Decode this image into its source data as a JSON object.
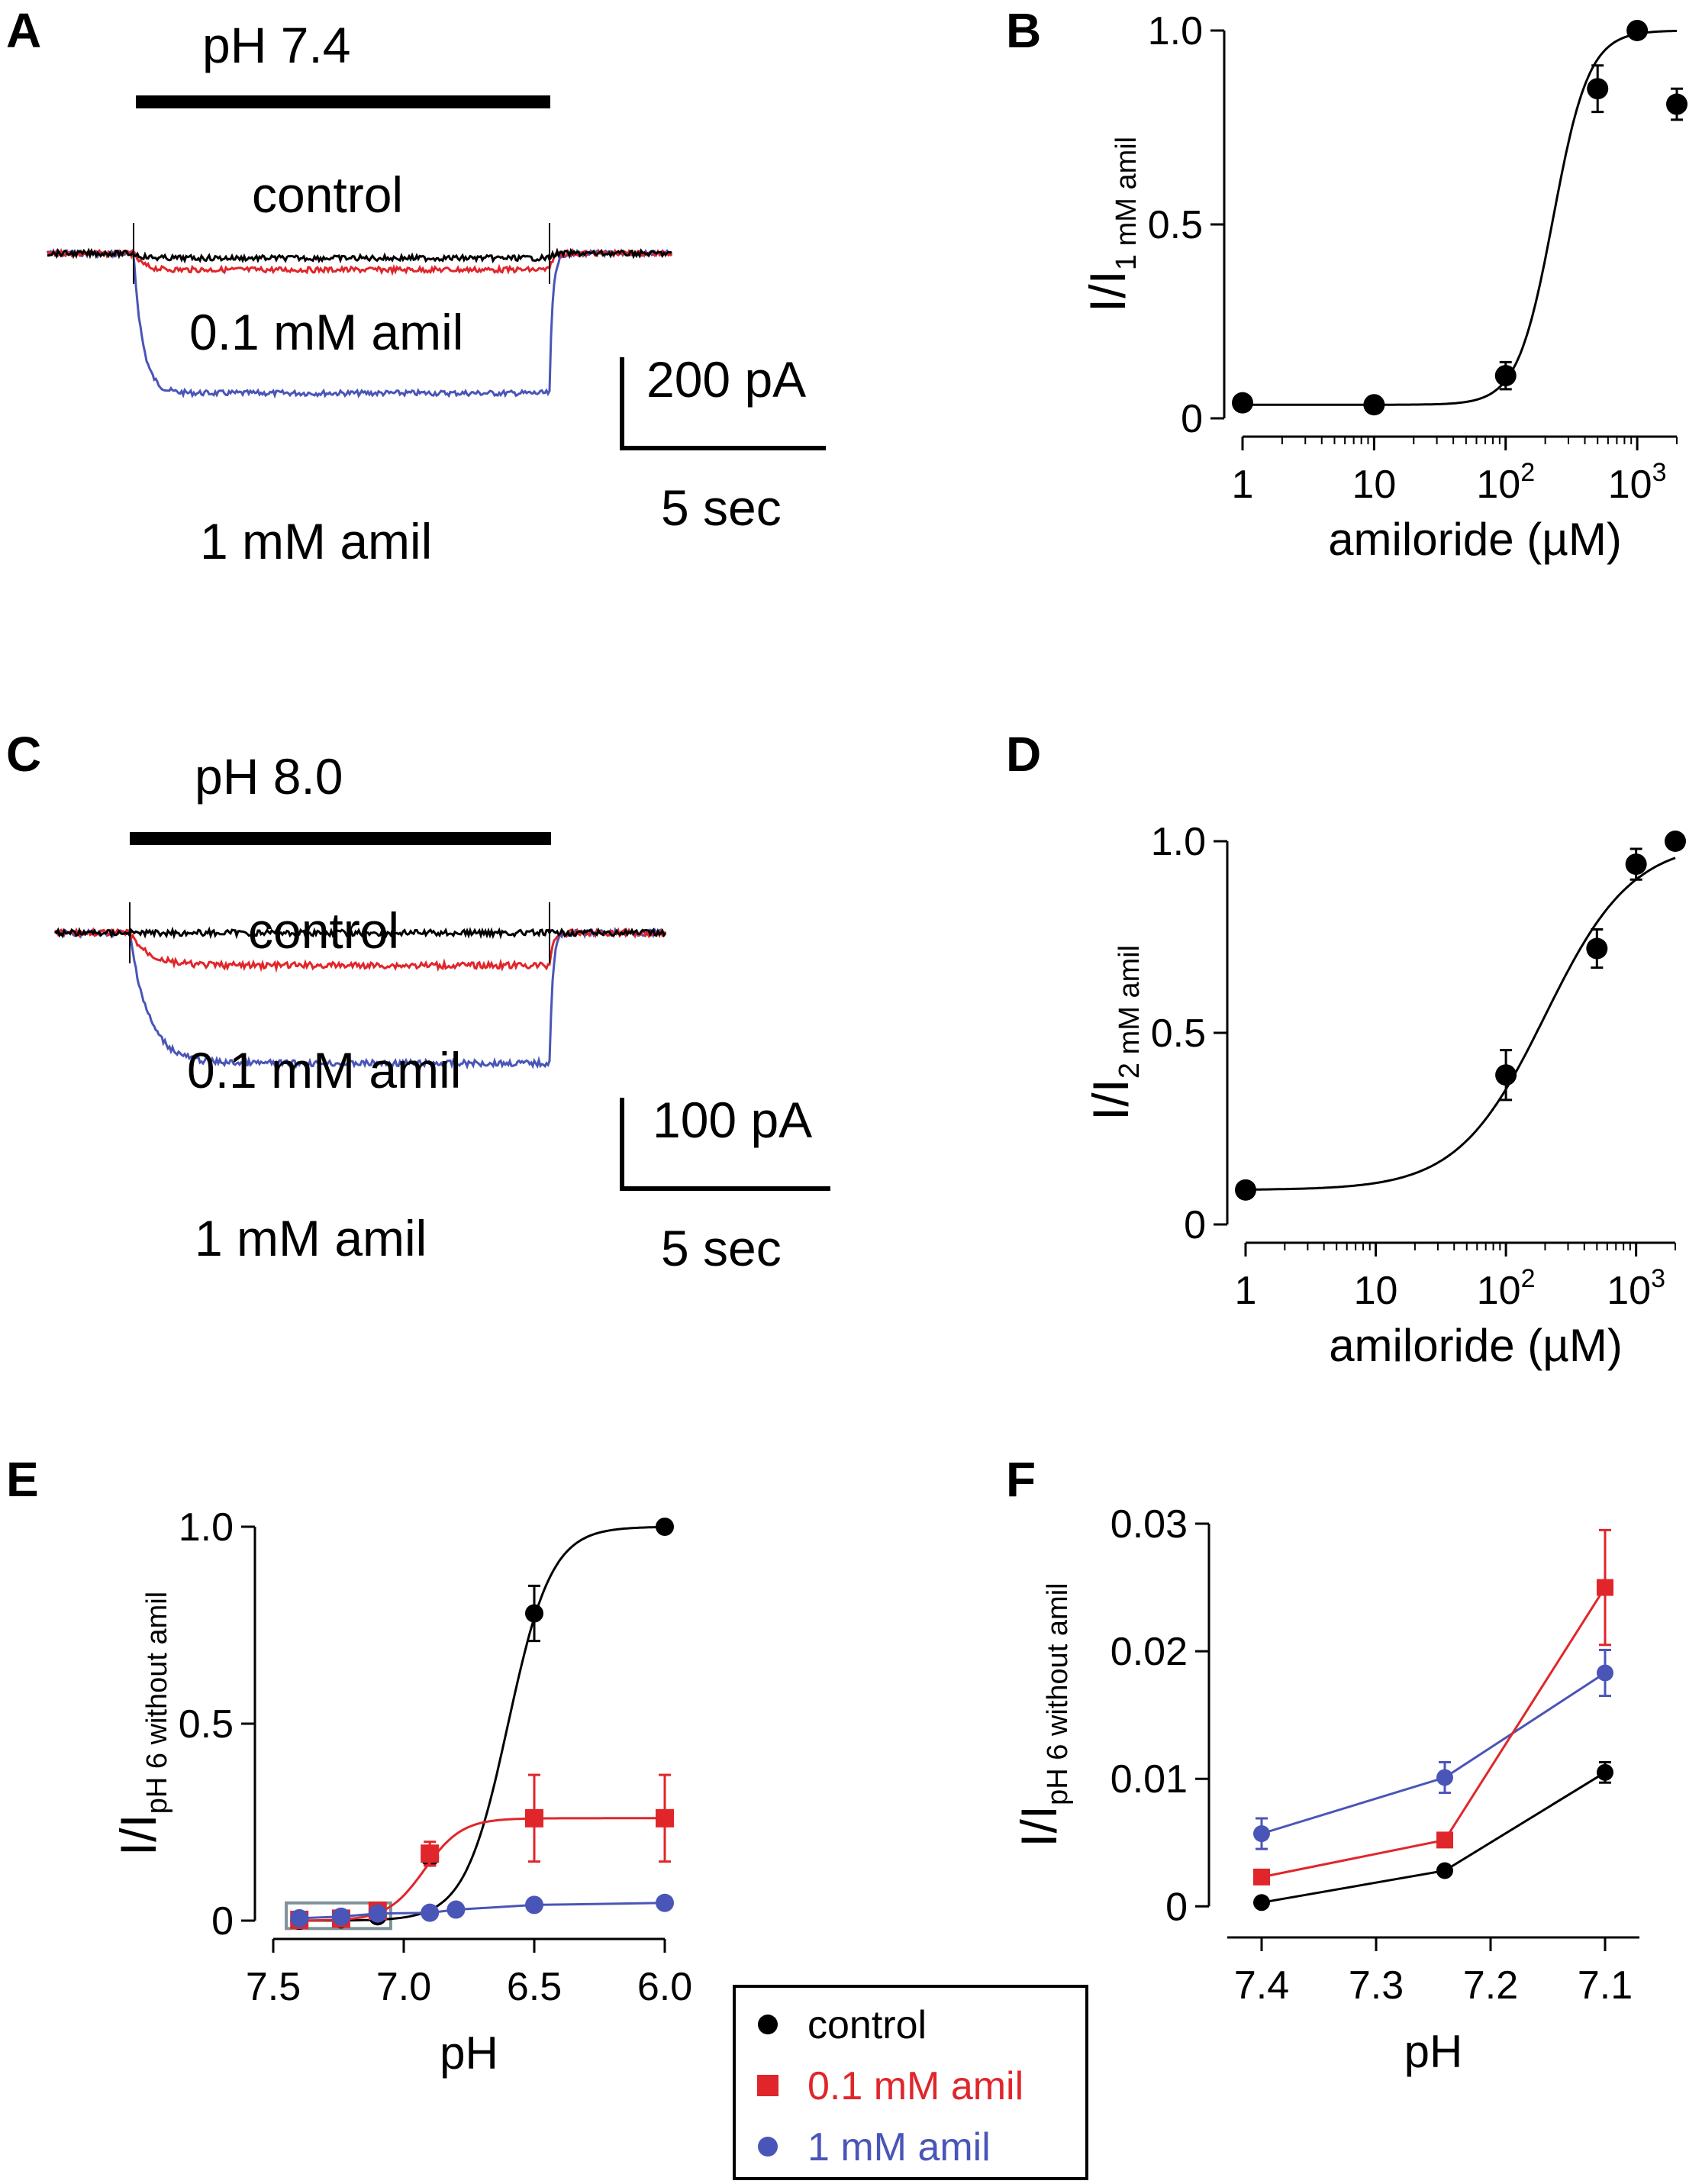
{
  "colors": {
    "control": "#000000",
    "amil_0_1": "#e0262b",
    "amil_1": "#4a55b8"
  },
  "panels": {
    "A": {
      "letter": "A",
      "stimulus_label": "pH 7.4",
      "trace_labels": {
        "control": "control",
        "amil_0_1": "0.1 mM amil",
        "amil_1": "1 mM amil"
      },
      "scale_bar": {
        "current": "200 pA",
        "time": "5 sec"
      },
      "trace_levels_pA": {
        "control": -10,
        "amil_0_1": -35,
        "amil_1": -300
      }
    },
    "C": {
      "letter": "C",
      "stimulus_label": "pH 8.0",
      "trace_labels": {
        "control": "control",
        "amil_0_1": "0.1 mM amil",
        "amil_1": "1 mM amil"
      },
      "scale_bar": {
        "current": "100 pA",
        "time": "5 sec"
      },
      "trace_levels_pA": {
        "control": 0,
        "amil_0_1": -35,
        "amil_1": -140
      }
    }
  },
  "chart_data": [
    {
      "id": "B",
      "letter": "B",
      "type": "scatter",
      "xscale": "log",
      "xlabel": "amiloride (µM)",
      "ylabel": {
        "main": "I/I",
        "sub": "1 mM amil"
      },
      "xlim": [
        1,
        2000
      ],
      "ylim": [
        0,
        1.0
      ],
      "xticks": [
        1,
        10,
        100,
        1000
      ],
      "xtick_labels": [
        {
          "base": "1",
          "sup": ""
        },
        {
          "base": "10",
          "sup": ""
        },
        {
          "base": "10",
          "sup": "2"
        },
        {
          "base": "10",
          "sup": "3"
        }
      ],
      "yticks": [
        0,
        0.5,
        1.0
      ],
      "ytick_labels": [
        "0",
        "0.5",
        "1.0"
      ],
      "points": [
        {
          "x": 1,
          "y": 0.04,
          "err": 0
        },
        {
          "x": 10,
          "y": 0.035,
          "err": 0
        },
        {
          "x": 100,
          "y": 0.11,
          "err": 0.035
        },
        {
          "x": 500,
          "y": 0.85,
          "err": 0.06
        },
        {
          "x": 1000,
          "y": 1.0,
          "err": 0
        },
        {
          "x": 2000,
          "y": 0.81,
          "err": 0.04
        }
      ],
      "fit": {
        "bottom": 0.035,
        "top": 1.0,
        "ic50": 230,
        "hill": 3.2
      }
    },
    {
      "id": "D",
      "letter": "D",
      "type": "scatter",
      "xscale": "log",
      "xlabel": "amiloride (µM)",
      "ylabel": {
        "main": "I/I",
        "sub": "2 mM amil"
      },
      "xlim": [
        1,
        2000
      ],
      "ylim": [
        0,
        1.0
      ],
      "xticks": [
        1,
        10,
        100,
        1000
      ],
      "xtick_labels": [
        {
          "base": "1",
          "sup": ""
        },
        {
          "base": "10",
          "sup": ""
        },
        {
          "base": "10",
          "sup": "2"
        },
        {
          "base": "10",
          "sup": "3"
        }
      ],
      "yticks": [
        0,
        0.5,
        1.0
      ],
      "ytick_labels": [
        "0",
        "0.5",
        "1.0"
      ],
      "points": [
        {
          "x": 1,
          "y": 0.09,
          "err": 0
        },
        {
          "x": 100,
          "y": 0.39,
          "err": 0.065
        },
        {
          "x": 500,
          "y": 0.72,
          "err": 0.05
        },
        {
          "x": 1000,
          "y": 0.94,
          "err": 0.04
        },
        {
          "x": 2000,
          "y": 1.0,
          "err": 0
        }
      ],
      "fit": {
        "bottom": 0.09,
        "top": 1.0,
        "ic50": 200,
        "hill": 1.3
      }
    },
    {
      "id": "E",
      "letter": "E",
      "type": "line",
      "xlabel": "pH",
      "ylabel": {
        "main": "I/I",
        "sub": "pH 6 without amil"
      },
      "xlim": [
        7.5,
        6.0
      ],
      "ylim": [
        0,
        1.0
      ],
      "xticks": [
        7.5,
        7.0,
        6.5,
        6.0
      ],
      "xtick_labels": [
        "7.5",
        "7.0",
        "6.5",
        "6.0"
      ],
      "yticks": [
        0,
        0.5,
        1.0
      ],
      "ytick_labels": [
        "0",
        "0.5",
        "1.0"
      ],
      "inset_box": {
        "x": [
          7.45,
          7.05
        ],
        "y": [
          -0.02,
          0.045
        ]
      },
      "series": [
        {
          "name": "control",
          "key": "control",
          "marker": "circle",
          "x": [
            7.4,
            7.24,
            7.1,
            6.9,
            6.5,
            6.0
          ],
          "y": [
            0.0,
            0.003,
            0.011,
            0.16,
            0.78,
            1.0
          ],
          "err": [
            0,
            0,
            0,
            0.02,
            0.07,
            0
          ],
          "fit": {
            "bottom": 0.0,
            "top": 1.0,
            "pH50": 6.6,
            "slope": 12
          }
        },
        {
          "name": "0.1 mM amil",
          "key": "amil_0_1",
          "marker": "square",
          "x": [
            7.4,
            7.24,
            7.1,
            6.9,
            6.5,
            6.0
          ],
          "y": [
            0.002,
            0.005,
            0.025,
            0.17,
            0.26,
            0.26
          ],
          "err": [
            0,
            0,
            0,
            0.03,
            0.11,
            0.11
          ],
          "fit": {
            "bottom": 0.0,
            "top": 0.26,
            "pH50": 6.92,
            "slope": 14
          }
        },
        {
          "name": "1 mM amil",
          "key": "amil_1",
          "marker": "circle",
          "x": [
            7.4,
            7.24,
            7.1,
            6.9,
            6.8,
            6.5,
            6.0
          ],
          "y": [
            0.006,
            0.01,
            0.018,
            0.02,
            0.028,
            0.04,
            0.045
          ],
          "err": [
            0,
            0,
            0,
            0,
            0,
            0,
            0
          ]
        }
      ]
    },
    {
      "id": "F",
      "letter": "F",
      "type": "line",
      "xlabel": "pH",
      "ylabel": {
        "main": "I/I",
        "sub": "pH 6 without amil"
      },
      "xlim": [
        7.43,
        7.07
      ],
      "ylim": [
        -0.001,
        0.03
      ],
      "xticks": [
        7.4,
        7.3,
        7.2,
        7.1
      ],
      "xtick_labels": [
        "7.4",
        "7.3",
        "7.2",
        "7.1"
      ],
      "yticks": [
        0,
        0.01,
        0.02,
        0.03
      ],
      "ytick_labels": [
        "0",
        "0.01",
        "0.02",
        "0.03"
      ],
      "series": [
        {
          "name": "control",
          "key": "control",
          "marker": "circle",
          "x": [
            7.4,
            7.24,
            7.1
          ],
          "y": [
            0.0003,
            0.0028,
            0.0105
          ],
          "err": [
            0,
            0,
            0.0008
          ]
        },
        {
          "name": "0.1 mM amil",
          "key": "amil_0_1",
          "marker": "square",
          "x": [
            7.4,
            7.24,
            7.1
          ],
          "y": [
            0.0023,
            0.0052,
            0.025
          ],
          "err": [
            0,
            0,
            0.0045
          ]
        },
        {
          "name": "1 mM amil",
          "key": "amil_1",
          "marker": "circle",
          "x": [
            7.4,
            7.24,
            7.1
          ],
          "y": [
            0.0057,
            0.0101,
            0.0183
          ],
          "err": [
            0.0012,
            0.0012,
            0.0018
          ]
        }
      ]
    }
  ],
  "legend": {
    "placement": "bottom-center",
    "items": [
      {
        "label": "control",
        "key": "control",
        "marker": "circle"
      },
      {
        "label": "0.1 mM amil",
        "key": "amil_0_1",
        "marker": "square"
      },
      {
        "label": "1 mM amil",
        "key": "amil_1",
        "marker": "circle"
      }
    ]
  }
}
